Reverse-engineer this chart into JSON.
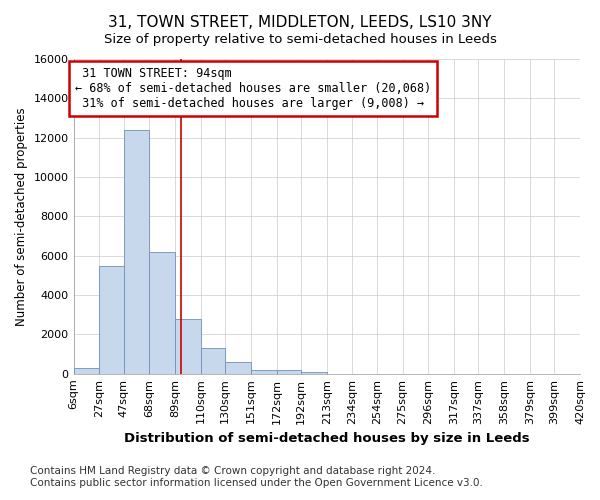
{
  "title": "31, TOWN STREET, MIDDLETON, LEEDS, LS10 3NY",
  "subtitle": "Size of property relative to semi-detached houses in Leeds",
  "xlabel": "Distribution of semi-detached houses by size in Leeds",
  "ylabel": "Number of semi-detached properties",
  "footnote1": "Contains HM Land Registry data © Crown copyright and database right 2024.",
  "footnote2": "Contains public sector information licensed under the Open Government Licence v3.0.",
  "property_label": "31 TOWN STREET: 94sqm",
  "smaller_pct": 68,
  "smaller_count": "20,068",
  "larger_pct": 31,
  "larger_count": "9,008",
  "bin_labels": [
    "6sqm",
    "27sqm",
    "47sqm",
    "68sqm",
    "89sqm",
    "110sqm",
    "130sqm",
    "151sqm",
    "172sqm",
    "192sqm",
    "213sqm",
    "234sqm",
    "254sqm",
    "275sqm",
    "296sqm",
    "317sqm",
    "337sqm",
    "358sqm",
    "379sqm",
    "399sqm",
    "420sqm"
  ],
  "bin_edges": [
    6,
    27,
    47,
    68,
    89,
    110,
    130,
    151,
    172,
    192,
    213,
    234,
    254,
    275,
    296,
    317,
    337,
    358,
    379,
    399,
    420
  ],
  "bar_values": [
    300,
    5500,
    12400,
    6200,
    2800,
    1300,
    600,
    200,
    200,
    100,
    0,
    0,
    0,
    0,
    0,
    0,
    0,
    0,
    0,
    0
  ],
  "bar_color": "#c8d8ec",
  "bar_edge_color": "#7090b8",
  "red_line_x": 94,
  "annotation_box_facecolor": "#ffffff",
  "annotation_border_color": "#cc0000",
  "ylim": [
    0,
    16000
  ],
  "yticks": [
    0,
    2000,
    4000,
    6000,
    8000,
    10000,
    12000,
    14000,
    16000
  ],
  "plot_bg_color": "#ffffff",
  "fig_bg_color": "#ffffff",
  "grid_color": "#cccccc",
  "title_fontsize": 11,
  "subtitle_fontsize": 9.5,
  "xlabel_fontsize": 9.5,
  "ylabel_fontsize": 8.5,
  "tick_fontsize": 8,
  "annot_fontsize": 8.5,
  "footnote_fontsize": 7.5
}
